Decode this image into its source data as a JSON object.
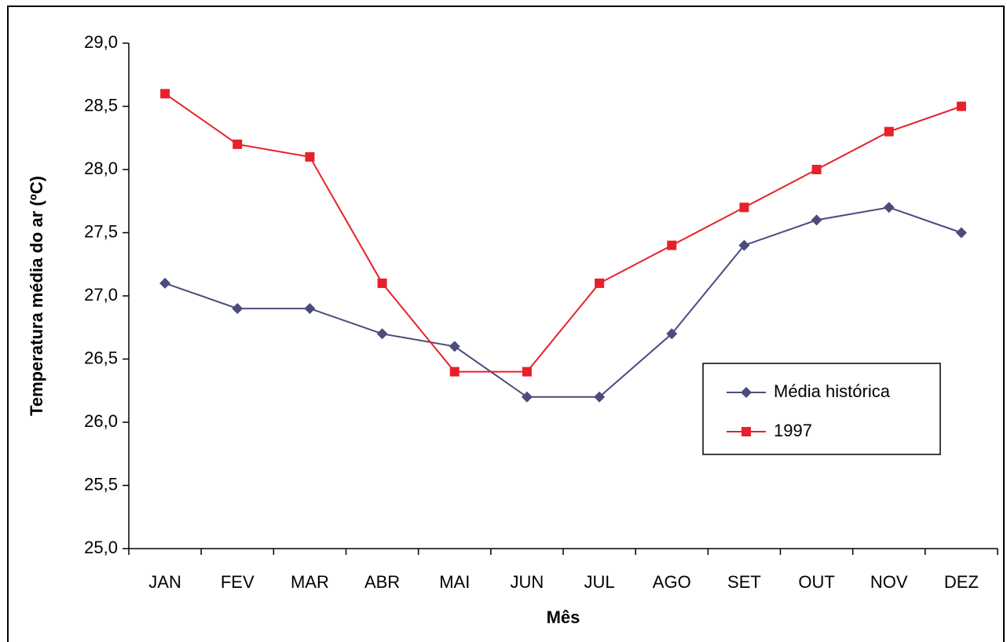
{
  "chart_data": {
    "type": "line",
    "x_label": "Mês",
    "y_label": "Temperatura média do ar (ºC)",
    "categories": [
      "JAN",
      "FEV",
      "MAR",
      "ABR",
      "MAI",
      "JUN",
      "JUL",
      "AGO",
      "SET",
      "OUT",
      "NOV",
      "DEZ"
    ],
    "series": [
      {
        "name": "Média histórica",
        "color": "#4b4b7d",
        "marker": "diamond",
        "values": [
          27.1,
          26.9,
          26.9,
          26.7,
          26.6,
          26.2,
          26.2,
          26.7,
          27.4,
          27.6,
          27.7,
          27.5
        ]
      },
      {
        "name": "1997",
        "color": "#e8202a",
        "marker": "square",
        "values": [
          28.6,
          28.2,
          28.1,
          27.1,
          26.4,
          26.4,
          27.1,
          27.4,
          27.7,
          28.0,
          28.3,
          28.5
        ]
      }
    ],
    "ylim": [
      25,
      29
    ],
    "yticks": [
      {
        "value": 25,
        "label": "25,0"
      },
      {
        "value": 25.5,
        "label": "25,5"
      },
      {
        "value": 26,
        "label": "26,0"
      },
      {
        "value": 26.5,
        "label": "26,5"
      },
      {
        "value": 27,
        "label": "27,0"
      },
      {
        "value": 27.5,
        "label": "27,5"
      },
      {
        "value": 28,
        "label": "28,0"
      },
      {
        "value": 28.5,
        "label": "28,5"
      },
      {
        "value": 29,
        "label": "29,0"
      }
    ],
    "grid": false,
    "legend": "inside-right"
  }
}
